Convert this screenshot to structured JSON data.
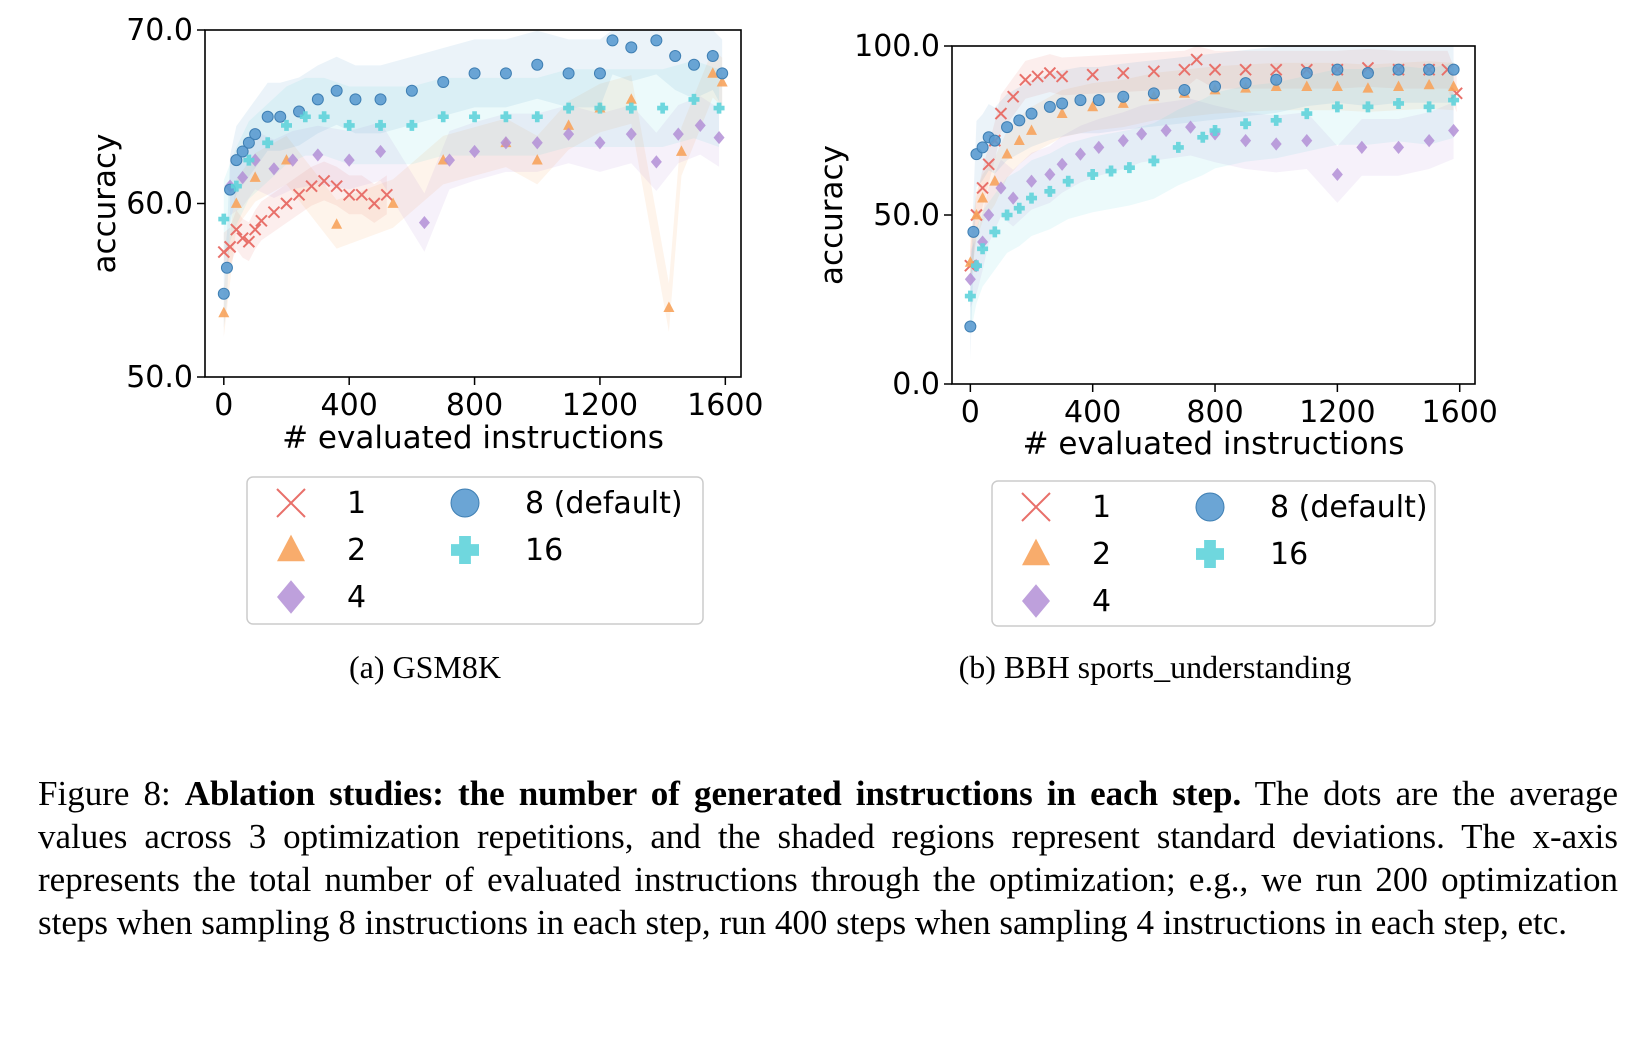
{
  "colors": {
    "s1": "#e8706a",
    "s2": "#f7a35c",
    "s4": "#b38fd6",
    "s8": "#5b9bd0",
    "s16": "#5fd3da"
  },
  "chart_data": [
    {
      "type": "scatter",
      "subcaption": "(a) GSM8K",
      "xlabel": "# evaluated instructions",
      "ylabel": "accuracy",
      "xlim": [
        -60,
        1650
      ],
      "ylim": [
        50,
        70
      ],
      "xticks": [
        0,
        400,
        800,
        1200,
        1600
      ],
      "xtick_labels": [
        "0",
        "400",
        "800",
        "1200",
        "1600"
      ],
      "yticks": [
        50,
        60,
        70
      ],
      "ytick_labels": [
        "50.0",
        "60.0",
        "70.0"
      ],
      "legend_position": "below",
      "shaded_regions": "standard deviation",
      "series": [
        {
          "name": "1",
          "marker": "x",
          "color_key": "s1",
          "x": [
            0,
            20,
            40,
            60,
            80,
            100,
            120,
            160,
            200,
            240,
            280,
            320,
            360,
            400,
            440,
            480,
            520
          ],
          "y": [
            57.2,
            57.5,
            58.5,
            58.0,
            57.8,
            58.5,
            59.0,
            59.5,
            60.0,
            60.5,
            61.0,
            61.3,
            61.0,
            60.5,
            60.5,
            60.0,
            60.5
          ]
        },
        {
          "name": "2",
          "marker": "triangle",
          "color_key": "s2",
          "x": [
            0,
            40,
            100,
            200,
            360,
            540,
            700,
            900,
            1000,
            1100,
            1200,
            1300,
            1420,
            1460,
            1560,
            1590
          ],
          "y": [
            53.7,
            60.0,
            61.5,
            62.5,
            58.8,
            60.0,
            62.5,
            63.5,
            62.5,
            64.5,
            65.5,
            66.0,
            54.0,
            63.0,
            67.5,
            67.0
          ]
        },
        {
          "name": "4",
          "marker": "diamond",
          "color_key": "s4",
          "x": [
            20,
            60,
            100,
            160,
            220,
            300,
            400,
            500,
            640,
            720,
            800,
            900,
            1000,
            1100,
            1200,
            1300,
            1380,
            1450,
            1520,
            1580
          ],
          "y": [
            61.0,
            61.5,
            62.5,
            62.0,
            62.5,
            62.8,
            62.5,
            63.0,
            58.9,
            62.5,
            63.0,
            63.5,
            63.5,
            64.0,
            63.5,
            64.0,
            62.4,
            64.0,
            64.5,
            63.8
          ]
        },
        {
          "name": "8 (default)",
          "marker": "circle",
          "color_key": "s8",
          "x": [
            0,
            10,
            20,
            40,
            60,
            80,
            100,
            140,
            180,
            240,
            300,
            360,
            420,
            500,
            600,
            700,
            800,
            900,
            1000,
            1100,
            1200,
            1240,
            1300,
            1380,
            1440,
            1500,
            1560,
            1590
          ],
          "y": [
            54.8,
            56.3,
            60.8,
            62.5,
            63.0,
            63.5,
            64.0,
            65.0,
            65.0,
            65.3,
            66.0,
            66.5,
            66.0,
            66.0,
            66.5,
            67.0,
            67.5,
            67.5,
            68.0,
            67.5,
            67.5,
            69.4,
            69.0,
            69.4,
            68.5,
            68.0,
            68.5,
            67.5
          ]
        },
        {
          "name": "16",
          "marker": "plus",
          "color_key": "s16",
          "x": [
            0,
            40,
            80,
            140,
            200,
            260,
            320,
            400,
            500,
            600,
            700,
            800,
            900,
            1000,
            1100,
            1200,
            1300,
            1400,
            1500,
            1580
          ],
          "y": [
            59.1,
            61.0,
            62.5,
            63.5,
            64.5,
            65.0,
            65.0,
            64.5,
            64.5,
            64.5,
            65.0,
            65.0,
            65.0,
            65.0,
            65.5,
            65.5,
            65.5,
            65.5,
            66.0,
            65.5
          ]
        }
      ]
    },
    {
      "type": "scatter",
      "subcaption": "(b) BBH sports_understanding",
      "xlabel": "# evaluated instructions",
      "ylabel": "accuracy",
      "xlim": [
        -60,
        1650
      ],
      "ylim": [
        0,
        100
      ],
      "xticks": [
        0,
        400,
        800,
        1200,
        1600
      ],
      "xtick_labels": [
        "0",
        "400",
        "800",
        "1200",
        "1600"
      ],
      "yticks": [
        0,
        50,
        100
      ],
      "ytick_labels": [
        "0.0",
        "50.0",
        "100.0"
      ],
      "legend_position": "below",
      "shaded_regions": "standard deviation",
      "series": [
        {
          "name": "1",
          "marker": "x",
          "color_key": "s1",
          "x": [
            0,
            20,
            40,
            60,
            80,
            100,
            140,
            180,
            220,
            260,
            300,
            400,
            500,
            600,
            700,
            740,
            800,
            900,
            1000,
            1100,
            1200,
            1300,
            1400,
            1500,
            1560,
            1590
          ],
          "y": [
            35.0,
            50.0,
            58.0,
            65.0,
            72.0,
            80.0,
            85.0,
            90.0,
            91.0,
            92.0,
            91.0,
            91.5,
            92.0,
            92.5,
            93.0,
            96.0,
            93.0,
            93.0,
            93.0,
            93.0,
            93.0,
            93.5,
            93.0,
            93.0,
            93.0,
            86.0
          ]
        },
        {
          "name": "2",
          "marker": "triangle",
          "color_key": "s2",
          "x": [
            0,
            20,
            40,
            80,
            120,
            160,
            200,
            300,
            400,
            500,
            600,
            700,
            800,
            900,
            1000,
            1100,
            1200,
            1300,
            1400,
            1500,
            1580
          ],
          "y": [
            36.0,
            50.0,
            55.0,
            60.0,
            68.0,
            72.0,
            75.0,
            80.0,
            82.0,
            83.0,
            85.0,
            86.0,
            87.0,
            87.5,
            88.0,
            88.0,
            88.0,
            87.5,
            88.0,
            88.5,
            88.0
          ]
        },
        {
          "name": "4",
          "marker": "diamond",
          "color_key": "s4",
          "x": [
            0,
            20,
            40,
            60,
            100,
            140,
            200,
            260,
            300,
            360,
            420,
            500,
            560,
            640,
            720,
            800,
            900,
            1000,
            1100,
            1200,
            1280,
            1400,
            1500,
            1580
          ],
          "y": [
            31.0,
            35.0,
            42.0,
            50.0,
            58.0,
            55.0,
            60.0,
            62.0,
            65.0,
            68.0,
            70.0,
            72.0,
            74.0,
            75.0,
            76.0,
            74.0,
            72.0,
            71.0,
            72.0,
            62.0,
            70.0,
            70.0,
            72.0,
            75.0
          ]
        },
        {
          "name": "8 (default)",
          "marker": "circle",
          "color_key": "s8",
          "x": [
            0,
            10,
            20,
            40,
            60,
            80,
            120,
            160,
            200,
            260,
            300,
            360,
            420,
            500,
            600,
            700,
            800,
            900,
            1000,
            1100,
            1200,
            1300,
            1400,
            1500,
            1580
          ],
          "y": [
            17.0,
            45.0,
            68.0,
            70.0,
            73.0,
            72.0,
            76.0,
            78.0,
            80.0,
            82.0,
            83.0,
            84.0,
            84.0,
            85.0,
            86.0,
            87.0,
            88.0,
            89.0,
            90.0,
            92.0,
            93.0,
            92.0,
            93.0,
            93.0,
            93.0
          ]
        },
        {
          "name": "16",
          "marker": "plus",
          "color_key": "s16",
          "x": [
            0,
            20,
            40,
            80,
            120,
            160,
            200,
            260,
            320,
            400,
            460,
            520,
            600,
            680,
            760,
            800,
            900,
            1000,
            1100,
            1200,
            1300,
            1400,
            1500,
            1580
          ],
          "y": [
            26.0,
            35.0,
            40.0,
            45.0,
            50.0,
            52.0,
            55.0,
            57.0,
            60.0,
            62.0,
            63.0,
            64.0,
            66.0,
            70.0,
            73.0,
            75.0,
            77.0,
            78.0,
            80.0,
            82.0,
            82.0,
            83.0,
            82.0,
            84.0
          ]
        }
      ]
    }
  ],
  "caption": {
    "label": "Figure 8:",
    "bold": "Ablation studies: the number of generated instructions in each step.",
    "text": "The dots are the average values across 3 optimization repetitions, and the shaded regions represent standard deviations. The x-axis represents the total number of evaluated instructions through the optimization; e.g., we run 200 optimization steps when sampling 8 instructions in each step, run 400 steps when sampling 4 instructions in each step, etc."
  }
}
